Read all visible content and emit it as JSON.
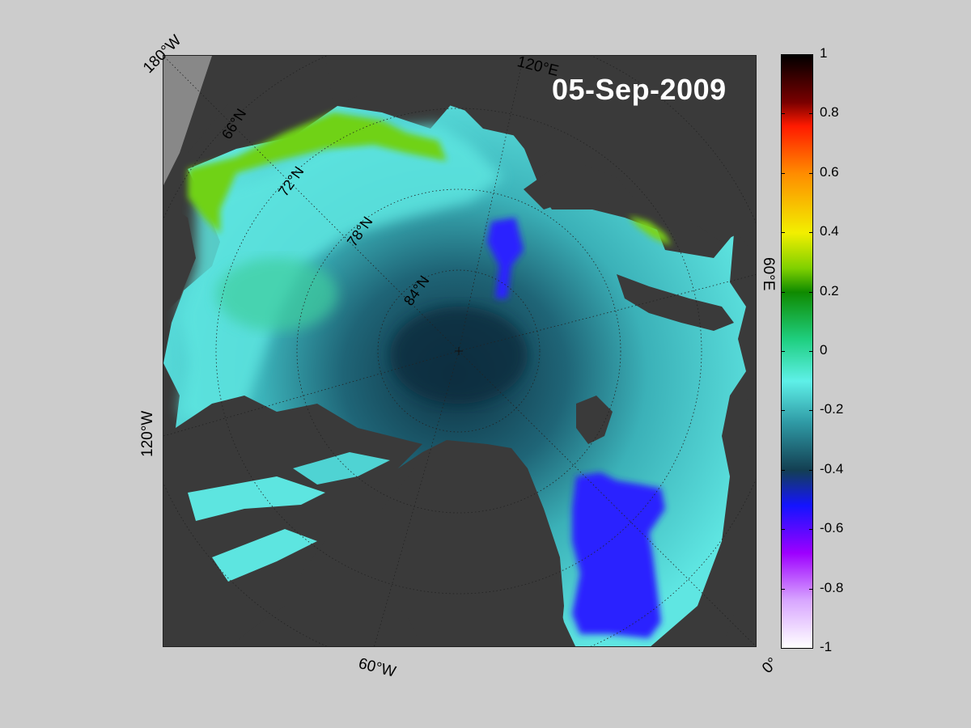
{
  "date_label": "05-Sep-2009",
  "longitude_labels": {
    "w180": "180°W",
    "e120": "120°E",
    "e60": "60°E",
    "e0": "0°",
    "w120": "120°W",
    "w60": "60°W"
  },
  "latitude_labels": {
    "n66": "66°N",
    "n72": "72°N",
    "n78": "78°N",
    "n84": "84°N"
  },
  "colorbar": {
    "min": -1,
    "max": 1,
    "tick_labels": [
      "1",
      "0.8",
      "0.6",
      "0.4",
      "0.2",
      "0",
      "-0.2",
      "-0.4",
      "-0.6",
      "-0.8",
      "-1"
    ],
    "colors": {
      "top": "#000000",
      "dark_red": "#7a0000",
      "red": "#ff1a00",
      "orange": "#ff8c00",
      "yellow": "#f2ef00",
      "yellow_green": "#7fd000",
      "green": "#0f8a00",
      "sea_green": "#1fcf80",
      "cyan": "#5ef0e8",
      "teal": "#2f9aa5",
      "dark_teal": "#133f52",
      "blue": "#1414ff",
      "violet": "#9d00ff",
      "lavender": "#d8a6ff",
      "white": "#ffffff"
    }
  },
  "map_colors": {
    "land": "#3a3a3a",
    "ice_shelf": "#888888",
    "ocean_light": "#5fe6e2",
    "ocean_mid": "#3bb1b8",
    "ocean_deep": "#1c5d70",
    "ocean_darkest": "#0e2f40",
    "anomaly_blue": "#2a22ff",
    "anomaly_green": "#6fd214"
  }
}
